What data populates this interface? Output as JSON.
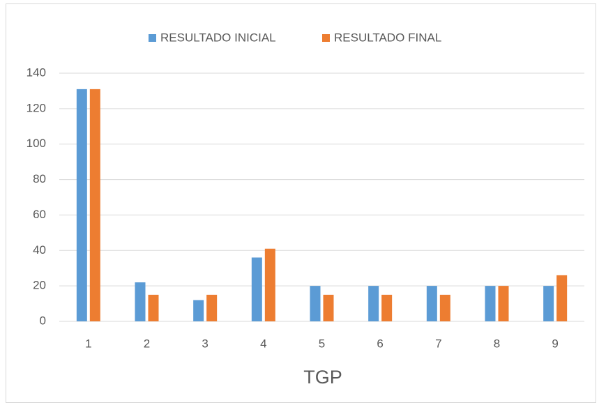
{
  "chart_data": {
    "type": "bar",
    "x_label": "TGP",
    "categories": [
      "1",
      "2",
      "3",
      "4",
      "5",
      "6",
      "7",
      "8",
      "9"
    ],
    "series": [
      {
        "name": "RESULTADO INICIAL",
        "color": "#5b9bd5",
        "values": [
          131,
          22,
          12,
          36,
          20,
          20,
          20,
          20,
          20
        ]
      },
      {
        "name": "RESULTADO FINAL",
        "color": "#ed7d31",
        "values": [
          131,
          15,
          15,
          41,
          15,
          15,
          15,
          20,
          26
        ]
      }
    ],
    "ylim": [
      0,
      140
    ],
    "yticks": [
      0,
      20,
      40,
      60,
      80,
      100,
      120,
      140
    ],
    "grid": true,
    "legend": "top"
  }
}
